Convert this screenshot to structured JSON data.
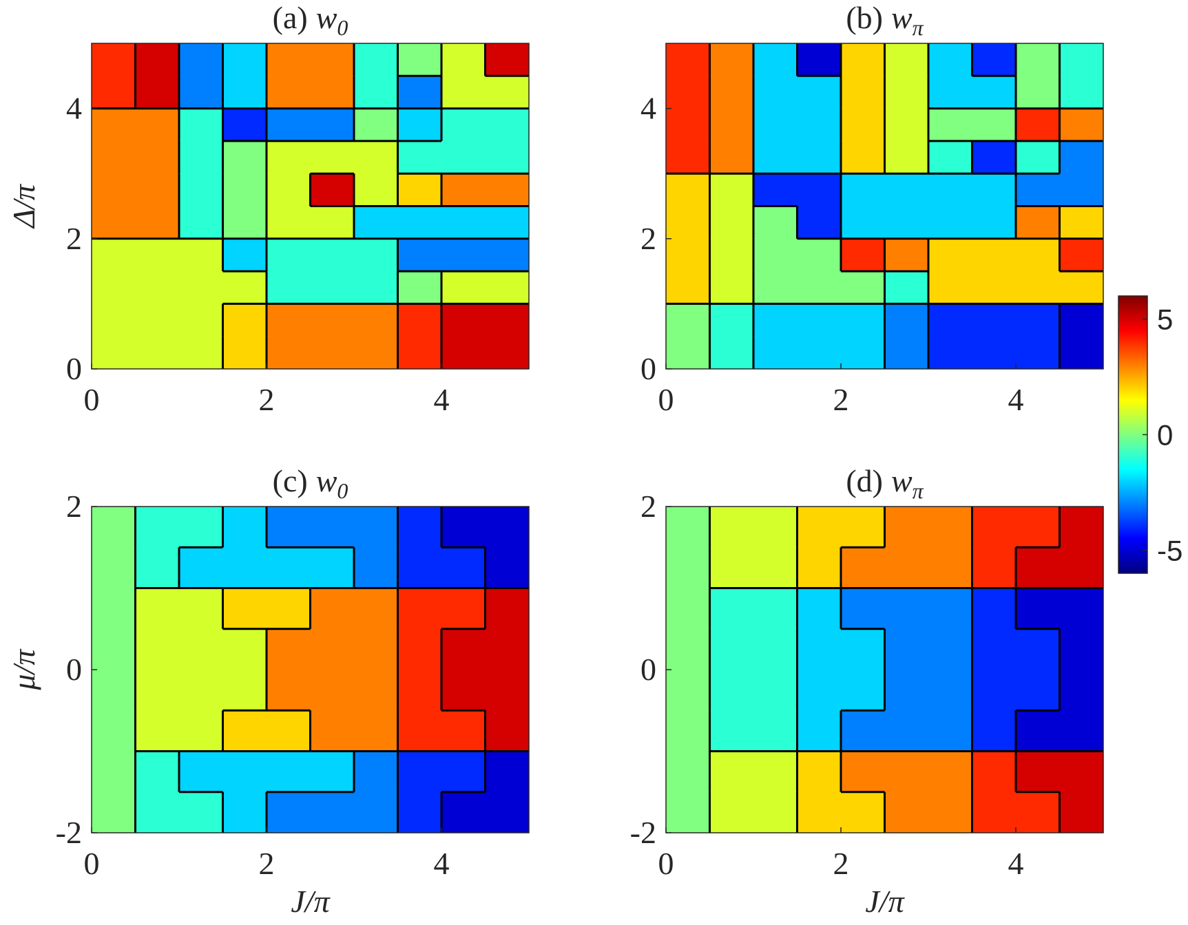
{
  "colorbar": {
    "colormap": "jet",
    "lim": [
      -6,
      6
    ],
    "ticks": [
      5,
      0,
      -5
    ]
  },
  "chart_data": [
    {
      "type": "heatmap",
      "title": {
        "label": "(a)",
        "symbol": "w",
        "subscript": "0"
      },
      "ylabel": "Δ/π",
      "xlim": [
        0,
        5
      ],
      "ylim": [
        0,
        5
      ],
      "xticks": [
        0,
        2,
        4
      ],
      "yticks": [
        0,
        2,
        4
      ],
      "xbins": [
        0,
        0.5,
        1,
        1.5,
        2,
        2.5,
        3,
        3.5,
        4,
        4.5,
        5
      ],
      "ybins": [
        0,
        0.5,
        1,
        1.5,
        2,
        2.5,
        3,
        3.5,
        4,
        4.5,
        5
      ],
      "z": [
        [
          1,
          1,
          1,
          2,
          3,
          3,
          3,
          4,
          5,
          5
        ],
        [
          1,
          1,
          1,
          2,
          3,
          3,
          3,
          4,
          5,
          5
        ],
        [
          1,
          1,
          1,
          1,
          -1,
          -1,
          -1,
          0,
          1,
          1
        ],
        [
          1,
          1,
          1,
          -2,
          -1,
          -1,
          -1,
          -3,
          -3,
          -3
        ],
        [
          3,
          3,
          -1,
          0,
          1,
          1,
          -2,
          -2,
          -2,
          -2
        ],
        [
          3,
          3,
          -1,
          0,
          1,
          5,
          1,
          2,
          3,
          3
        ],
        [
          3,
          3,
          -1,
          0,
          1,
          1,
          1,
          -1,
          -1,
          -1
        ],
        [
          3,
          3,
          -1,
          -4,
          -3,
          -3,
          0,
          -2,
          -1,
          -1
        ],
        [
          4,
          5,
          -3,
          -2,
          3,
          3,
          -1,
          -3,
          1,
          1
        ],
        [
          4,
          5,
          -3,
          -2,
          3,
          3,
          -1,
          0,
          1,
          5
        ]
      ]
    },
    {
      "type": "heatmap",
      "title": {
        "label": "(b)",
        "symbol": "w",
        "subscript": "π"
      },
      "xlim": [
        0,
        5
      ],
      "ylim": [
        0,
        5
      ],
      "xticks": [
        0,
        2,
        4
      ],
      "yticks": [
        0,
        2,
        4
      ],
      "xbins": [
        0,
        0.5,
        1,
        1.5,
        2,
        2.5,
        3,
        3.5,
        4,
        4.5,
        5
      ],
      "ybins": [
        0,
        0.5,
        1,
        1.5,
        2,
        2.5,
        3,
        3.5,
        4,
        4.5,
        5
      ],
      "z": [
        [
          0,
          -1,
          -2,
          -2,
          -2,
          -3,
          -4,
          -4,
          -4,
          -5
        ],
        [
          0,
          -1,
          -2,
          -2,
          -2,
          -3,
          -4,
          -4,
          -4,
          -5
        ],
        [
          2,
          1,
          0,
          0,
          0,
          -1,
          2,
          2,
          2,
          2
        ],
        [
          2,
          1,
          0,
          0,
          4,
          3,
          2,
          2,
          2,
          4
        ],
        [
          2,
          1,
          0,
          -4,
          -2,
          -2,
          -2,
          -2,
          3,
          2
        ],
        [
          2,
          1,
          -4,
          -4,
          -2,
          -2,
          -2,
          -2,
          -3,
          -3
        ],
        [
          4,
          3,
          -2,
          -2,
          2,
          1,
          -1,
          -4,
          -1,
          -3
        ],
        [
          4,
          3,
          -2,
          -2,
          2,
          1,
          0,
          0,
          4,
          3
        ],
        [
          4,
          3,
          -2,
          -2,
          2,
          1,
          -2,
          -2,
          0,
          -1
        ],
        [
          4,
          3,
          -2,
          -5,
          2,
          1,
          -2,
          -4,
          0,
          -1
        ]
      ]
    },
    {
      "type": "heatmap",
      "title": {
        "label": "(c)",
        "symbol": "w",
        "subscript": "0"
      },
      "ylabel": "μ/π",
      "xlabel": "J/π",
      "xlim": [
        0,
        5
      ],
      "ylim": [
        -2,
        2
      ],
      "xticks": [
        0,
        2,
        4
      ],
      "yticks": [
        -2,
        0,
        2
      ],
      "xbins": [
        0,
        0.5,
        1,
        1.5,
        2,
        2.5,
        3,
        3.5,
        4,
        4.5,
        5
      ],
      "ybins": [
        -2,
        -1.5,
        -1,
        -0.5,
        0,
        0.5,
        1,
        1.5,
        2
      ],
      "z": [
        [
          0,
          -1,
          -1,
          -2,
          -3,
          -3,
          -3,
          -4,
          -5,
          -5
        ],
        [
          0,
          -1,
          -2,
          -2,
          -2,
          -2,
          -3,
          -4,
          -4,
          -5
        ],
        [
          0,
          1,
          1,
          2,
          2,
          3,
          3,
          4,
          4,
          5
        ],
        [
          0,
          1,
          1,
          1,
          3,
          3,
          3,
          4,
          5,
          5
        ],
        [
          0,
          1,
          1,
          1,
          3,
          3,
          3,
          4,
          5,
          5
        ],
        [
          0,
          1,
          1,
          2,
          2,
          3,
          3,
          4,
          4,
          5
        ],
        [
          0,
          -1,
          -2,
          -2,
          -2,
          -2,
          -3,
          -4,
          -4,
          -5
        ],
        [
          0,
          -1,
          -1,
          -2,
          -3,
          -3,
          -3,
          -4,
          -5,
          -5
        ]
      ]
    },
    {
      "type": "heatmap",
      "title": {
        "label": "(d)",
        "symbol": "w",
        "subscript": "π"
      },
      "xlabel": "J/π",
      "xlim": [
        0,
        5
      ],
      "ylim": [
        -2,
        2
      ],
      "xticks": [
        0,
        2,
        4
      ],
      "yticks": [
        -2,
        0,
        2
      ],
      "xbins": [
        0,
        0.5,
        1,
        1.5,
        2,
        2.5,
        3,
        3.5,
        4,
        4.5,
        5
      ],
      "ybins": [
        -2,
        -1.5,
        -1,
        -0.5,
        0,
        0.5,
        1,
        1.5,
        2
      ],
      "z": [
        [
          0,
          1,
          1,
          2,
          2,
          3,
          3,
          4,
          4,
          5
        ],
        [
          0,
          1,
          1,
          2,
          3,
          3,
          3,
          4,
          5,
          5
        ],
        [
          0,
          -1,
          -1,
          -2,
          -3,
          -3,
          -3,
          -4,
          -5,
          -5
        ],
        [
          0,
          -1,
          -1,
          -2,
          -2,
          -3,
          -3,
          -4,
          -4,
          -5
        ],
        [
          0,
          -1,
          -1,
          -2,
          -2,
          -3,
          -3,
          -4,
          -4,
          -5
        ],
        [
          0,
          -1,
          -1,
          -2,
          -3,
          -3,
          -3,
          -4,
          -5,
          -5
        ],
        [
          0,
          1,
          1,
          2,
          3,
          3,
          3,
          4,
          5,
          5
        ],
        [
          0,
          1,
          1,
          2,
          2,
          3,
          3,
          4,
          4,
          5
        ]
      ]
    }
  ]
}
